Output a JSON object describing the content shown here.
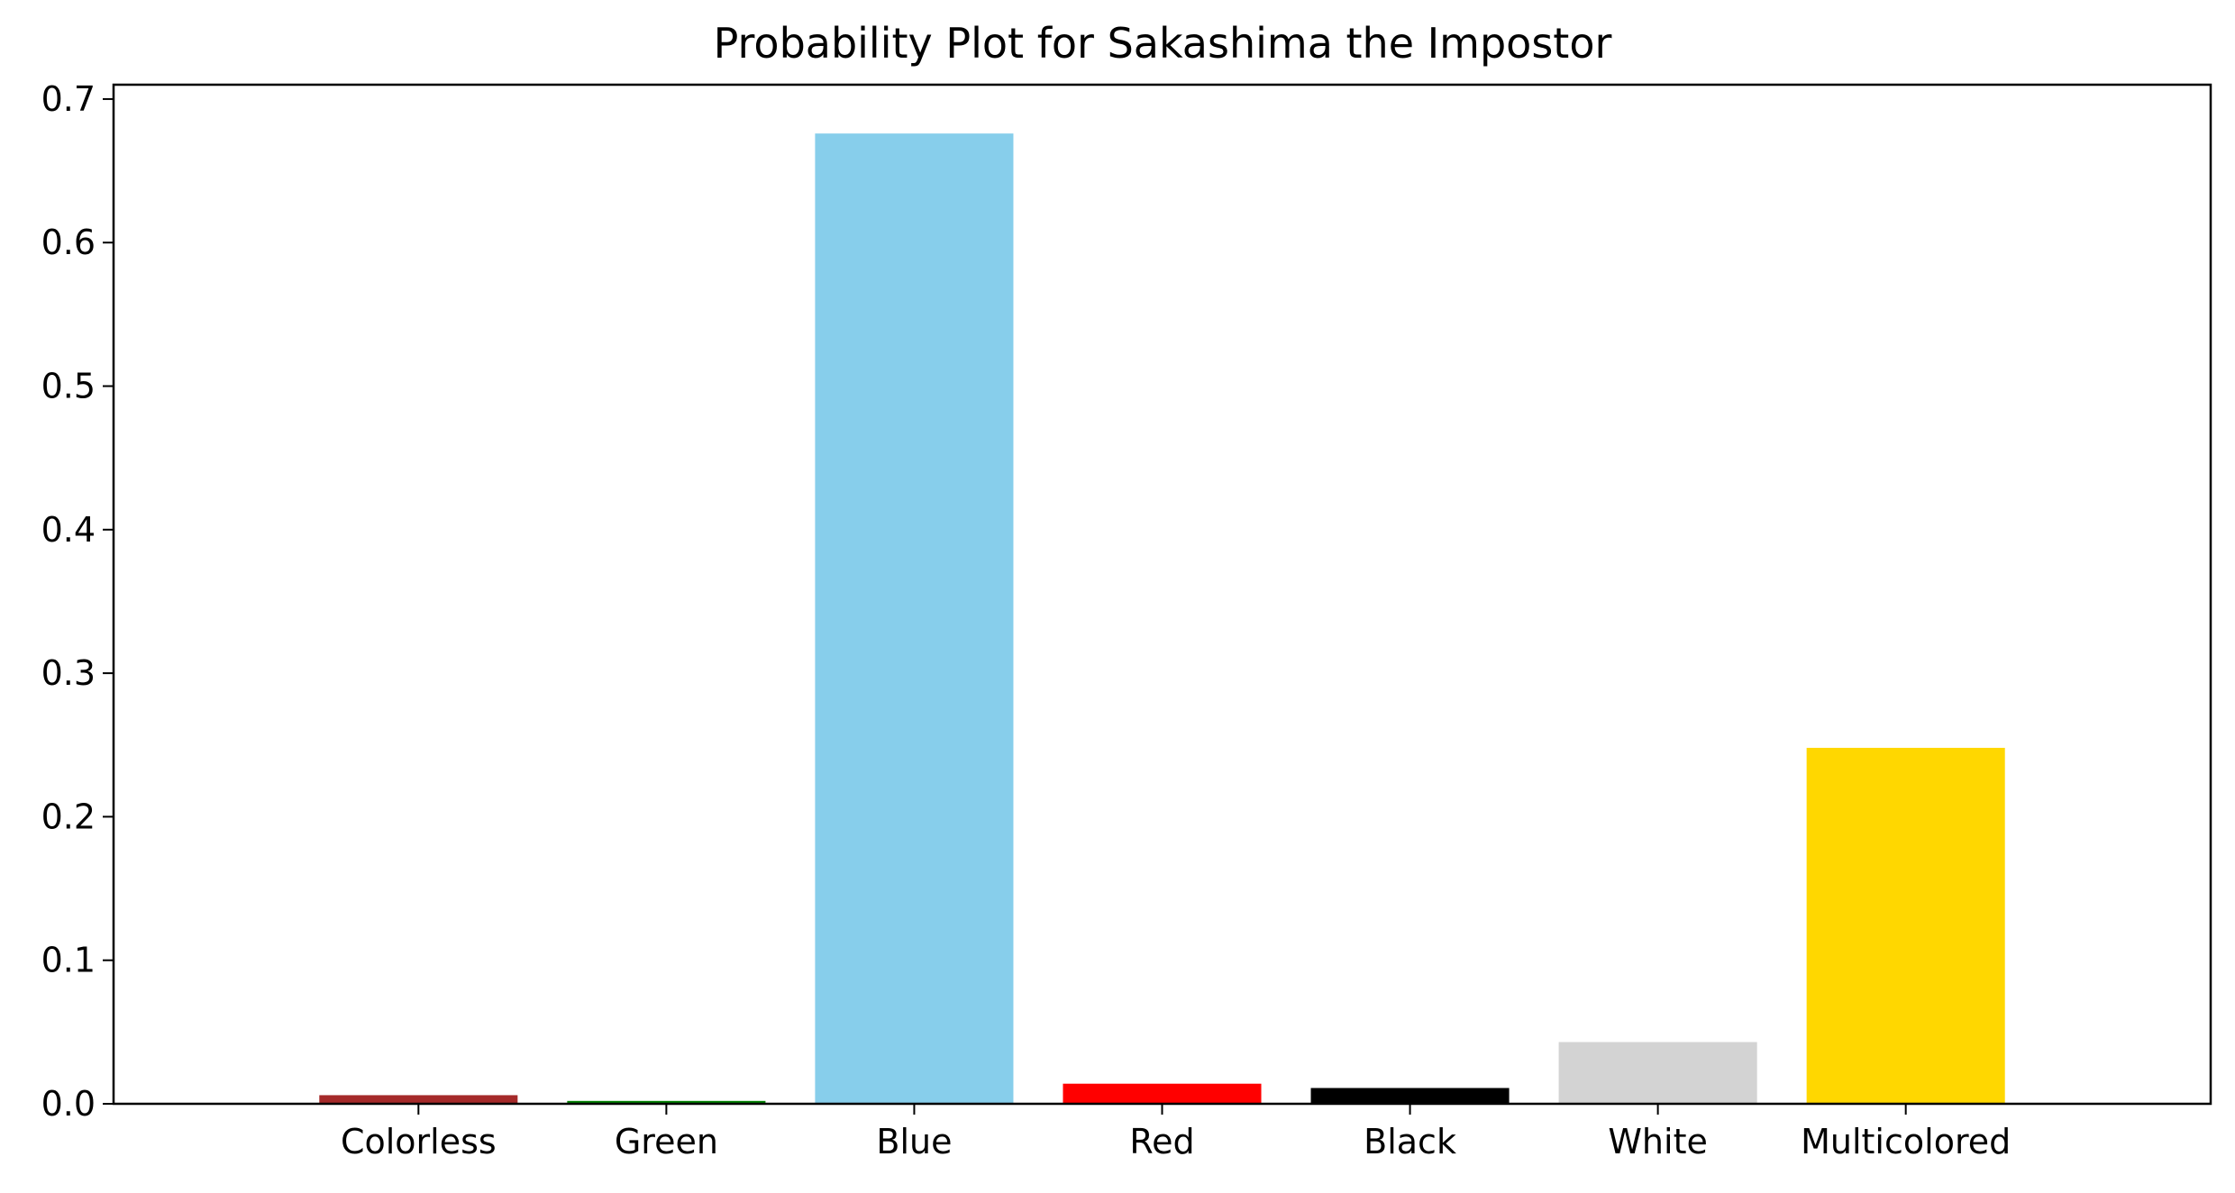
{
  "chart_data": {
    "type": "bar",
    "title": "Probability Plot for Sakashima the Impostor",
    "xlabel": "",
    "ylabel": "",
    "categories": [
      "Colorless",
      "Green",
      "Blue",
      "Red",
      "Black",
      "White",
      "Multicolored"
    ],
    "values": [
      0.006,
      0.002,
      0.676,
      0.014,
      0.011,
      0.043,
      0.248
    ],
    "colors": [
      "#a52a2a",
      "#008000",
      "#87ceeb",
      "#ff0000",
      "#000000",
      "#d3d3d3",
      "#ffd700"
    ],
    "ylim": [
      0,
      0.71
    ],
    "yticks": [
      "0.0",
      "0.1",
      "0.2",
      "0.3",
      "0.4",
      "0.5",
      "0.6",
      "0.7"
    ],
    "grid": false,
    "legend": false
  }
}
